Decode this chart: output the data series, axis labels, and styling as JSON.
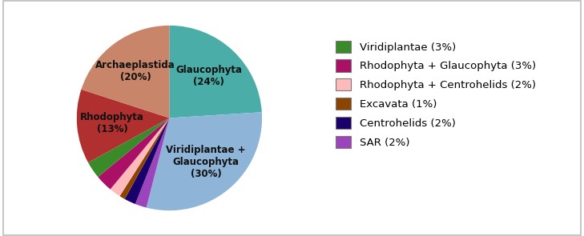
{
  "slices": [
    {
      "label": "Glaucophyta\n(24%)",
      "value": 24,
      "color": "#4AADA8",
      "show_label": true
    },
    {
      "label": "Viridiplantae +\nGlaucophyta\n(30%)",
      "value": 30,
      "color": "#8EB4D8",
      "show_label": true
    },
    {
      "label": "SAR",
      "value": 2,
      "color": "#9B44BB",
      "show_label": false
    },
    {
      "label": "Centrohelids",
      "value": 2,
      "color": "#1A006A",
      "show_label": false
    },
    {
      "label": "Excavata",
      "value": 1,
      "color": "#8B4500",
      "show_label": false
    },
    {
      "label": "Rhodophyta +\nCentrohelids",
      "value": 2,
      "color": "#FFBBBB",
      "show_label": false
    },
    {
      "label": "Rhodophyta +\nGlaucophyta",
      "value": 3,
      "color": "#AA1166",
      "show_label": false
    },
    {
      "label": "Viridiplantae",
      "value": 3,
      "color": "#3A8A2A",
      "show_label": false
    },
    {
      "label": "Rhodophyta\n(13%)",
      "value": 13,
      "color": "#B03030",
      "show_label": true
    },
    {
      "label": "Archaeplastida\n(20%)",
      "value": 20,
      "color": "#C8856A",
      "show_label": true
    }
  ],
  "legend_items": [
    {
      "label": "Viridiplantae (3%)",
      "color": "#3A8A2A"
    },
    {
      "label": "Rhodophyta + Glaucophyta (3%)",
      "color": "#AA1166"
    },
    {
      "label": "Rhodophyta + Centrohelids (2%)",
      "color": "#FFBBBB"
    },
    {
      "label": "Excavata (1%)",
      "color": "#8B4500"
    },
    {
      "label": "Centrohelids (2%)",
      "color": "#1A006A"
    },
    {
      "label": "SAR (2%)",
      "color": "#9B44BB"
    }
  ],
  "background_color": "#FFFFFF",
  "label_fontsize": 8.5,
  "legend_fontsize": 9.5
}
